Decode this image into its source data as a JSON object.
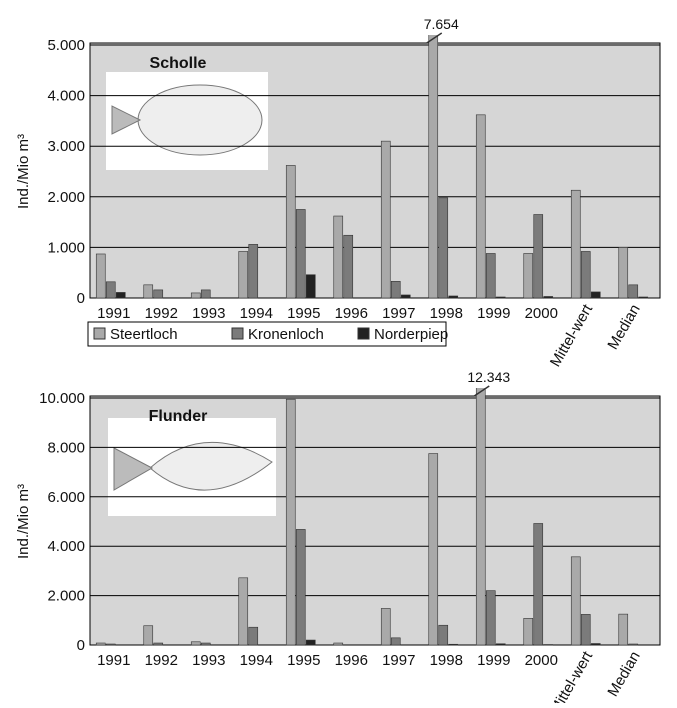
{
  "chart_data": [
    {
      "type": "bar",
      "title": "Scholle",
      "y_label": "Ind./Mio m³",
      "categories": [
        "1991",
        "1992",
        "1993",
        "1994",
        "1995",
        "1996",
        "1997",
        "1998",
        "1999",
        "2000",
        "Mittel-wert",
        "Median"
      ],
      "series": [
        {
          "name": "Steertloch",
          "color": "#a9a9a9",
          "values": [
            870,
            260,
            100,
            920,
            2620,
            1620,
            3100,
            7654,
            3620,
            880,
            2130,
            1000
          ],
          "value_labels": [
            null,
            null,
            null,
            null,
            null,
            null,
            null,
            "7.654",
            null,
            null,
            null,
            null
          ]
        },
        {
          "name": "Kronenloch",
          "color": "#7b7b7b",
          "values": [
            320,
            160,
            160,
            1060,
            1750,
            1240,
            330,
            1980,
            880,
            1650,
            920,
            260
          ]
        },
        {
          "name": "Norderpiep",
          "color": "#222222",
          "values": [
            110,
            0,
            0,
            0,
            460,
            0,
            60,
            40,
            20,
            30,
            120,
            20
          ]
        }
      ],
      "ylim": [
        0,
        5000
      ],
      "yticks": [
        0,
        {
          "value": 1000,
          "label": "1.000"
        },
        {
          "value": 2000,
          "label": "2.000"
        },
        {
          "value": 3000,
          "label": "3.000"
        },
        {
          "value": 4000,
          "label": "4.000"
        },
        {
          "value": 5000,
          "label": "5.000"
        }
      ],
      "grid": true
    },
    {
      "type": "bar",
      "title": "Flunder",
      "y_label": "Ind./Mio m³",
      "categories": [
        "1991",
        "1992",
        "1993",
        "1994",
        "1995",
        "1996",
        "1997",
        "1998",
        "1999",
        "2000",
        "Mittel-wert",
        "Median"
      ],
      "series": [
        {
          "name": "Steertloch",
          "color": "#a9a9a9",
          "values": [
            80,
            780,
            130,
            2720,
            9950,
            80,
            1480,
            7750,
            12343,
            1080,
            3570,
            1250
          ],
          "value_labels": [
            null,
            null,
            null,
            null,
            null,
            null,
            null,
            null,
            "12.343",
            null,
            null,
            null
          ]
        },
        {
          "name": "Kronenloch",
          "color": "#7b7b7b",
          "values": [
            40,
            80,
            80,
            720,
            4680,
            0,
            290,
            800,
            2200,
            4920,
            1240,
            40
          ]
        },
        {
          "name": "Norderpiep",
          "color": "#222222",
          "values": [
            0,
            0,
            0,
            0,
            200,
            0,
            0,
            30,
            50,
            20,
            60,
            0
          ]
        }
      ],
      "ylim": [
        0,
        10000
      ],
      "yticks": [
        0,
        {
          "value": 2000,
          "label": "2.000"
        },
        {
          "value": 4000,
          "label": "4.000"
        },
        {
          "value": 6000,
          "label": "6.000"
        },
        {
          "value": 8000,
          "label": "8.000"
        },
        {
          "value": 10000,
          "label": "10.000"
        }
      ],
      "grid": true
    }
  ]
}
